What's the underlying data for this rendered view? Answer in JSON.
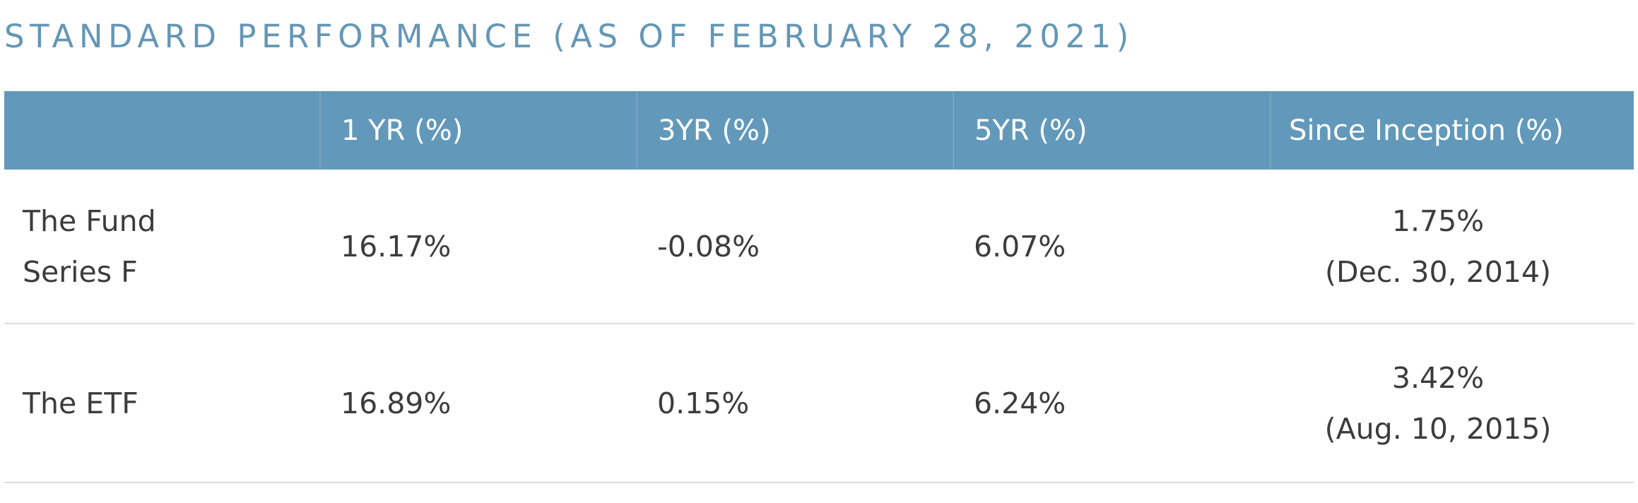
{
  "title": "STANDARD PERFORMANCE (AS OF FEBRUARY 28, 2021)",
  "table": {
    "headers": [
      "",
      "1 YR (%)",
      "3YR (%)",
      "5YR (%)",
      "Since Inception (%)"
    ],
    "rows": [
      {
        "name_line1": "The Fund",
        "name_line2": "Series F",
        "one_yr": "16.17%",
        "three_yr": "-0.08%",
        "five_yr": "6.07%",
        "since_inception": "1.75%",
        "inception_date": "(Dec. 30, 2014)"
      },
      {
        "name_line1": "The ETF",
        "name_line2": "",
        "one_yr": "16.89%",
        "three_yr": "0.15%",
        "five_yr": "6.24%",
        "since_inception": "3.42%",
        "inception_date": "(Aug. 10, 2015)"
      }
    ]
  },
  "colors": {
    "title": "#6597b5",
    "header_bg": "#6299ba",
    "header_text": "#ffffff",
    "body_text": "#3c3c3c",
    "row_divider": "#dcdcdc"
  }
}
